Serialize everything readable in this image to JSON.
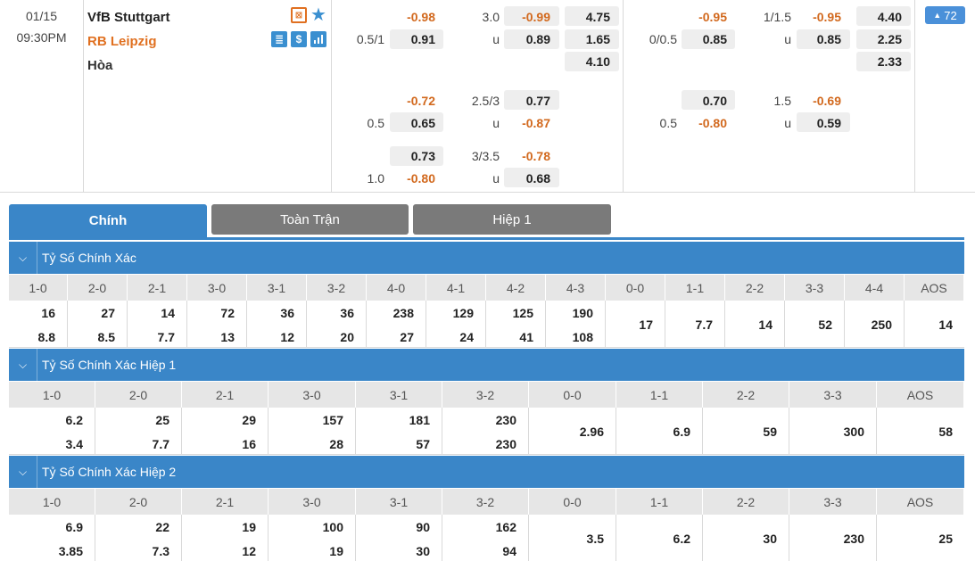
{
  "match": {
    "date": "01/15",
    "time": "09:30PM",
    "home": "VfB Stuttgart",
    "away": "RB Leipzig",
    "draw": "Hòa",
    "more_count": "72",
    "icons": [
      "lineup-icon",
      "star-icon",
      "stats-icon",
      "money-icon",
      "chart-icon"
    ],
    "colors": {
      "accent": "#3a86c8",
      "odds_red": "#d2691e",
      "away_team": "#e07020",
      "tab_inactive": "#7a7a7a"
    }
  },
  "odds": {
    "ft_main": {
      "hdp_home": "-0.98",
      "hdp_line": "0.5/1",
      "hdp_away": "0.91",
      "ou_line": "3.0",
      "ou_over": "-0.99",
      "ou_u": "u",
      "ou_under": "0.89",
      "x12_home": "4.75",
      "x12_away": "1.65",
      "x12_draw": "4.10"
    },
    "h1_main": {
      "hdp_home": "-0.95",
      "hdp_line": "0/0.5",
      "hdp_away": "0.85",
      "ou_line": "1/1.5",
      "ou_over": "-0.95",
      "ou_u": "u",
      "ou_under": "0.85",
      "x12_home": "4.40",
      "x12_away": "2.25",
      "x12_draw": "2.33"
    },
    "ft_alt1": {
      "hdp_home": "-0.72",
      "hdp_line": "0.5",
      "hdp_away": "0.65",
      "ou_line": "2.5/3",
      "ou_over": "0.77",
      "ou_u": "u",
      "ou_under": "-0.87"
    },
    "ft_alt2": {
      "hdp_home": "0.73",
      "hdp_line": "1.0",
      "hdp_away": "-0.80",
      "ou_line": "3/3.5",
      "ou_over": "-0.78",
      "ou_u": "u",
      "ou_under": "0.68"
    },
    "h1_alt1": {
      "hdp_home": "0.70",
      "hdp_line": "0.5",
      "hdp_away": "-0.80",
      "ou_line": "1.5",
      "ou_over": "-0.69",
      "ou_u": "u",
      "ou_under": "0.59"
    }
  },
  "tabs": [
    "Chính",
    "Toàn Trận",
    "Hiệp 1"
  ],
  "sections": [
    {
      "title": "Tỷ Số Chính Xác",
      "headers": [
        "1-0",
        "2-0",
        "2-1",
        "3-0",
        "3-1",
        "3-2",
        "4-0",
        "4-1",
        "4-2",
        "4-3",
        "0-0",
        "1-1",
        "2-2",
        "3-3",
        "4-4",
        "AOS"
      ],
      "values": [
        [
          "16",
          "8.8"
        ],
        [
          "27",
          "8.5"
        ],
        [
          "14",
          "7.7"
        ],
        [
          "72",
          "13"
        ],
        [
          "36",
          "12"
        ],
        [
          "36",
          "20"
        ],
        [
          "238",
          "27"
        ],
        [
          "129",
          "24"
        ],
        [
          "125",
          "41"
        ],
        [
          "190",
          "108"
        ],
        [
          "17"
        ],
        [
          "7.7"
        ],
        [
          "14"
        ],
        [
          "52"
        ],
        [
          "250"
        ],
        [
          "14"
        ]
      ]
    },
    {
      "title": "Tỷ Số Chính Xác Hiệp 1",
      "headers": [
        "1-0",
        "2-0",
        "2-1",
        "3-0",
        "3-1",
        "3-2",
        "0-0",
        "1-1",
        "2-2",
        "3-3",
        "AOS"
      ],
      "values": [
        [
          "6.2",
          "3.4"
        ],
        [
          "25",
          "7.7"
        ],
        [
          "29",
          "16"
        ],
        [
          "157",
          "28"
        ],
        [
          "181",
          "57"
        ],
        [
          "230",
          "230"
        ],
        [
          "2.96"
        ],
        [
          "6.9"
        ],
        [
          "59"
        ],
        [
          "300"
        ],
        [
          "58"
        ]
      ]
    },
    {
      "title": "Tỷ Số Chính Xác Hiệp 2",
      "headers": [
        "1-0",
        "2-0",
        "2-1",
        "3-0",
        "3-1",
        "3-2",
        "0-0",
        "1-1",
        "2-2",
        "3-3",
        "AOS"
      ],
      "values": [
        [
          "6.9",
          "3.85"
        ],
        [
          "22",
          "7.3"
        ],
        [
          "19",
          "12"
        ],
        [
          "100",
          "19"
        ],
        [
          "90",
          "30"
        ],
        [
          "162",
          "94"
        ],
        [
          "3.5"
        ],
        [
          "6.2"
        ],
        [
          "30"
        ],
        [
          "230"
        ],
        [
          "25"
        ]
      ]
    }
  ]
}
